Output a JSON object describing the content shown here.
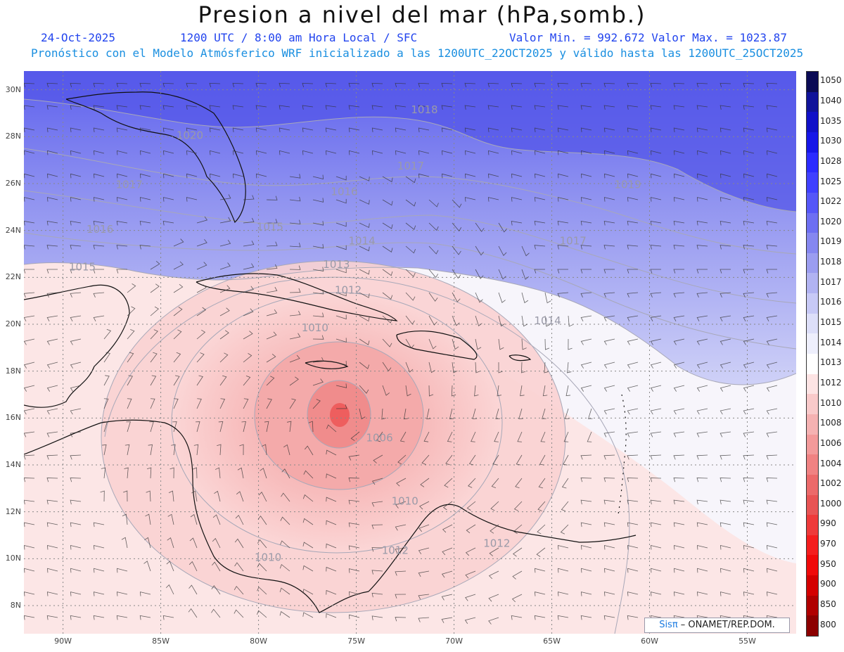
{
  "header": {
    "title": "Presion a nivel del mar (hPa,somb.)",
    "date": "24-Oct-2025",
    "time": "1200 UTC / 8:00 am Hora Local / SFC",
    "min_max": "Valor Min. = 992.672  Valor Max. = 1023.87",
    "forecast": "Pronóstico con el Modelo Atmósferico WRF inicializado a las 1200UTC_22OCT2025 y válido hasta las  1200UTC_25OCT2025"
  },
  "axes": {
    "lat_labels": [
      "30N",
      "28N",
      "26N",
      "24N",
      "22N",
      "20N",
      "18N",
      "16N",
      "14N",
      "12N",
      "10N",
      "8N"
    ],
    "lon_labels": [
      "90W",
      "85W",
      "80W",
      "75W",
      "70W",
      "65W",
      "60W",
      "55W"
    ]
  },
  "map": {
    "lon_range": [
      -92,
      -52.5
    ],
    "lat_range": [
      6.8,
      30.8
    ],
    "contour_labels": [
      {
        "text": "1018",
        "lon": -72.2,
        "lat": 29.0
      },
      {
        "text": "1020",
        "lon": -84.2,
        "lat": 27.9
      },
      {
        "text": "1017",
        "lon": -72.9,
        "lat": 26.6
      },
      {
        "text": "1017",
        "lon": -87.3,
        "lat": 25.8
      },
      {
        "text": "1016",
        "lon": -76.3,
        "lat": 25.5
      },
      {
        "text": "1019",
        "lon": -61.8,
        "lat": 25.8
      },
      {
        "text": "1015",
        "lon": -80.1,
        "lat": 24.0
      },
      {
        "text": "1016",
        "lon": -88.8,
        "lat": 23.9
      },
      {
        "text": "1014",
        "lon": -75.4,
        "lat": 23.4
      },
      {
        "text": "1017",
        "lon": -64.6,
        "lat": 23.4
      },
      {
        "text": "1013",
        "lon": -76.7,
        "lat": 22.4
      },
      {
        "text": "1015",
        "lon": -89.7,
        "lat": 22.3
      },
      {
        "text": "1012",
        "lon": -76.1,
        "lat": 21.3
      },
      {
        "text": "1014",
        "lon": -65.9,
        "lat": 20.0
      },
      {
        "text": "1010",
        "lon": -77.8,
        "lat": 19.7
      },
      {
        "text": "1006",
        "lon": -74.5,
        "lat": 15.0
      },
      {
        "text": "1010",
        "lon": -73.2,
        "lat": 12.3
      },
      {
        "text": "1012",
        "lon": -68.5,
        "lat": 10.5
      },
      {
        "text": "1012",
        "lon": -73.7,
        "lat": 10.2
      },
      {
        "text": "1010",
        "lon": -80.2,
        "lat": 9.9
      }
    ],
    "low_center": {
      "lon": -75.8,
      "lat": 15.9
    }
  },
  "colorbar": {
    "levels": [
      "1050",
      "1040",
      "1035",
      "1030",
      "1028",
      "1025",
      "1022",
      "1020",
      "1019",
      "1018",
      "1017",
      "1016",
      "1015",
      "1014",
      "1013",
      "1012",
      "1010",
      "1008",
      "1006",
      "1004",
      "1002",
      "1000",
      "990",
      "970",
      "950",
      "900",
      "850",
      "800"
    ],
    "colors": [
      "#0b0b55",
      "#10139a",
      "#1010c8",
      "#1616e8",
      "#2b2bff",
      "#3f40ff",
      "#5557f8",
      "#6d6ff2",
      "#8587f0",
      "#9b9df0",
      "#b1b3f2",
      "#c7c9f6",
      "#dddff9",
      "#eeeffc",
      "#ffffff",
      "#fde4e4",
      "#f9caca",
      "#f5b2b2",
      "#f39a9a",
      "#f08282",
      "#ec6a6a",
      "#e85454",
      "#ee3a3a",
      "#f41e1e",
      "#f00a0a",
      "#d40000",
      "#b00000",
      "#8c0000"
    ]
  },
  "credit": {
    "brand": "Sisπ",
    "text": " – ONAMET/REP.DOM."
  }
}
